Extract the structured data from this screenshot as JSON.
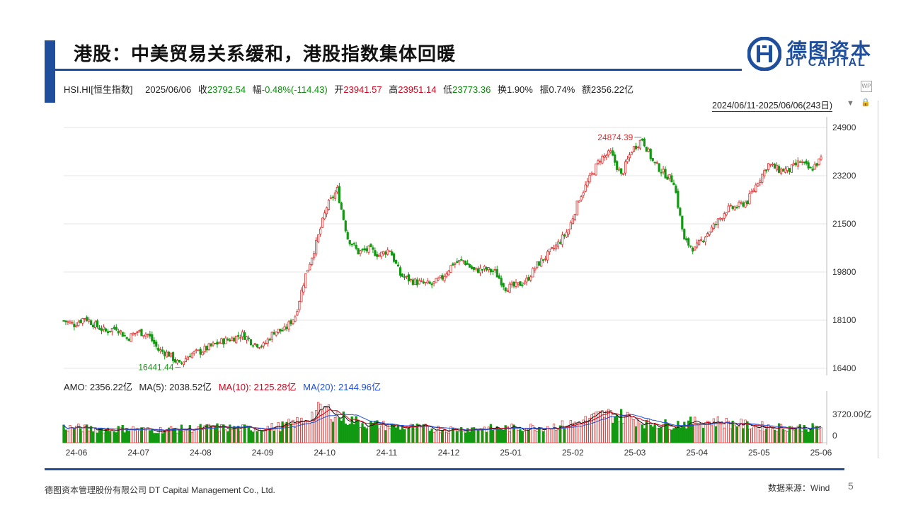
{
  "title": "港股：中美贸易关系缓和，港股指数集体回暖",
  "logo": {
    "cn": "德图资本",
    "en": "DT CAPITAL"
  },
  "quote": {
    "symbol": "HSI.HI[恒生指数]",
    "date": "2025/06/06",
    "close_label": "收",
    "close": "23792.54",
    "change_label": "幅",
    "change": "-0.48%(-114.43)",
    "open_label": "开",
    "open": "23941.57",
    "high_label": "高",
    "high": "23951.14",
    "low_label": "低",
    "low": "23773.36",
    "turnover_label": "换",
    "turnover": "1.90%",
    "amplitude_label": "振",
    "amplitude": "0.74%",
    "amount_label": "额",
    "amount": "2356.22亿"
  },
  "range": "2024/06/11-2025/06/06(243日)",
  "amo": {
    "amo": "AMO: 2356.22亿",
    "ma5": "MA(5): 2038.52亿",
    "ma10": "MA(10): 2125.28亿",
    "ma20": "MA(20): 2144.96亿"
  },
  "colors": {
    "up": "#e0302f",
    "down": "#129912",
    "brand": "#1f4e9c",
    "ma5": "#111111",
    "ma10": "#d0021b",
    "ma20": "#1f4fd8"
  },
  "chart_data": {
    "type": "candlestick",
    "price_axis_ticks": [
      "24900",
      "23200",
      "21500",
      "19800",
      "18100",
      "16400"
    ],
    "price_ylim": [
      16400,
      24900
    ],
    "volume_axis_ticks": [
      "3720.00亿",
      "0"
    ],
    "x_tick_labels": [
      "24-06",
      "24-07",
      "24-08",
      "24-09",
      "24-10",
      "24-11",
      "24-12",
      "25-01",
      "25-02",
      "25-03",
      "25-04",
      "25-05",
      "25-06"
    ],
    "annotations": {
      "high": "24874.39",
      "low": "16441.44"
    },
    "close_path": [
      [
        0,
        18080
      ],
      [
        5,
        17950
      ],
      [
        10,
        18200
      ],
      [
        15,
        17920
      ],
      [
        20,
        17700
      ],
      [
        25,
        17850
      ],
      [
        30,
        17450
      ],
      [
        35,
        17700
      ],
      [
        40,
        17600
      ],
      [
        45,
        17050
      ],
      [
        50,
        16900
      ],
      [
        55,
        16520
      ],
      [
        60,
        16900
      ],
      [
        65,
        16990
      ],
      [
        70,
        17180
      ],
      [
        75,
        17350
      ],
      [
        80,
        17450
      ],
      [
        85,
        17600
      ],
      [
        90,
        17300
      ],
      [
        95,
        17200
      ],
      [
        100,
        17700
      ],
      [
        105,
        17750
      ],
      [
        110,
        18250
      ],
      [
        115,
        19700
      ],
      [
        120,
        20800
      ],
      [
        125,
        22100
      ],
      [
        130,
        22700
      ],
      [
        135,
        21000
      ],
      [
        140,
        20500
      ],
      [
        145,
        20600
      ],
      [
        150,
        20400
      ],
      [
        155,
        20600
      ],
      [
        160,
        19700
      ],
      [
        165,
        19500
      ],
      [
        170,
        19400
      ],
      [
        175,
        19350
      ],
      [
        180,
        19600
      ],
      [
        185,
        20100
      ],
      [
        190,
        20200
      ],
      [
        195,
        19850
      ],
      [
        200,
        19900
      ],
      [
        205,
        19800
      ],
      [
        210,
        19250
      ],
      [
        215,
        19300
      ],
      [
        220,
        19500
      ],
      [
        225,
        20050
      ],
      [
        230,
        20400
      ],
      [
        235,
        20800
      ],
      [
        240,
        21300
      ],
      [
        245,
        22400
      ],
      [
        250,
        23100
      ],
      [
        255,
        23800
      ],
      [
        260,
        24000
      ],
      [
        265,
        23200
      ],
      [
        270,
        24100
      ],
      [
        275,
        24500
      ],
      [
        280,
        23700
      ],
      [
        285,
        23300
      ],
      [
        290,
        23000
      ],
      [
        295,
        20900
      ],
      [
        300,
        20600
      ],
      [
        305,
        21100
      ],
      [
        310,
        21500
      ],
      [
        315,
        22000
      ],
      [
        320,
        22100
      ],
      [
        325,
        22300
      ],
      [
        330,
        23000
      ],
      [
        335,
        23600
      ],
      [
        340,
        23400
      ],
      [
        345,
        23400
      ],
      [
        350,
        23700
      ],
      [
        355,
        23400
      ],
      [
        360,
        23790
      ]
    ],
    "volume_levels": [
      0.32,
      0.3,
      0.28,
      0.3,
      0.26,
      0.28,
      0.3,
      0.32,
      0.3,
      0.3,
      0.34,
      0.45,
      0.72,
      0.5,
      0.4,
      0.35,
      0.32,
      0.3,
      0.28,
      0.3,
      0.3,
      0.31,
      0.33,
      0.36,
      0.45,
      0.6,
      0.55,
      0.4,
      0.38,
      0.42,
      0.45,
      0.4,
      0.35,
      0.33,
      0.32,
      0.31
    ]
  }
}
